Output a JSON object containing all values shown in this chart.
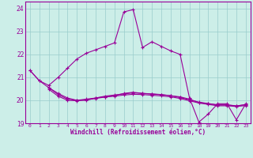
{
  "xlabel": "Windchill (Refroidissement éolien,°C)",
  "bg_color": "#cceee8",
  "line_color": "#990099",
  "grid_color": "#99cccc",
  "ylim": [
    19,
    24.3
  ],
  "xlim": [
    -0.5,
    23.5
  ],
  "yticks": [
    19,
    20,
    21,
    22,
    23,
    24
  ],
  "xticks": [
    0,
    1,
    2,
    3,
    4,
    5,
    6,
    7,
    8,
    9,
    10,
    11,
    12,
    13,
    14,
    15,
    16,
    17,
    18,
    19,
    20,
    21,
    22,
    23
  ],
  "line1_x": [
    0,
    1,
    2,
    3,
    4,
    5,
    6,
    7,
    8,
    9,
    10,
    11,
    12,
    13,
    14,
    15,
    16,
    17,
    18,
    19,
    20,
    21,
    22,
    23
  ],
  "line1_y": [
    21.3,
    20.85,
    20.65,
    21.0,
    21.4,
    21.8,
    22.05,
    22.2,
    22.35,
    22.5,
    23.85,
    23.95,
    22.3,
    22.55,
    22.35,
    22.15,
    22.0,
    20.1,
    19.05,
    19.4,
    19.85,
    19.85,
    19.15,
    19.85
  ],
  "line2_x": [
    0,
    1,
    2,
    3,
    4,
    5,
    6,
    7,
    8,
    9,
    10,
    11,
    12,
    13,
    14,
    15,
    16,
    17,
    18,
    19,
    20,
    21,
    22,
    23
  ],
  "line2_y": [
    21.3,
    20.85,
    20.55,
    20.3,
    20.1,
    20.0,
    20.0,
    20.1,
    20.15,
    20.2,
    20.3,
    20.35,
    20.3,
    20.28,
    20.25,
    20.2,
    20.15,
    20.05,
    19.9,
    19.85,
    19.8,
    19.8,
    19.75,
    19.82
  ],
  "line3_x": [
    2,
    3,
    4,
    5,
    6,
    7,
    8,
    9,
    10,
    11,
    12,
    13,
    14,
    15,
    16,
    17,
    18,
    19,
    20,
    21,
    22,
    23
  ],
  "line3_y": [
    20.55,
    20.25,
    20.05,
    20.0,
    20.05,
    20.1,
    20.18,
    20.23,
    20.28,
    20.32,
    20.3,
    20.27,
    20.24,
    20.2,
    20.12,
    20.02,
    19.92,
    19.86,
    19.8,
    19.8,
    19.76,
    19.8
  ],
  "line4_x": [
    2,
    3,
    4,
    5,
    6,
    7,
    8,
    9,
    10,
    11,
    12,
    13,
    14,
    15,
    16,
    17,
    18,
    19,
    20,
    21,
    22,
    23
  ],
  "line4_y": [
    20.48,
    20.18,
    20.0,
    19.98,
    20.02,
    20.08,
    20.14,
    20.18,
    20.23,
    20.26,
    20.25,
    20.22,
    20.19,
    20.15,
    20.08,
    19.98,
    19.88,
    19.82,
    19.76,
    19.76,
    19.73,
    19.77
  ]
}
